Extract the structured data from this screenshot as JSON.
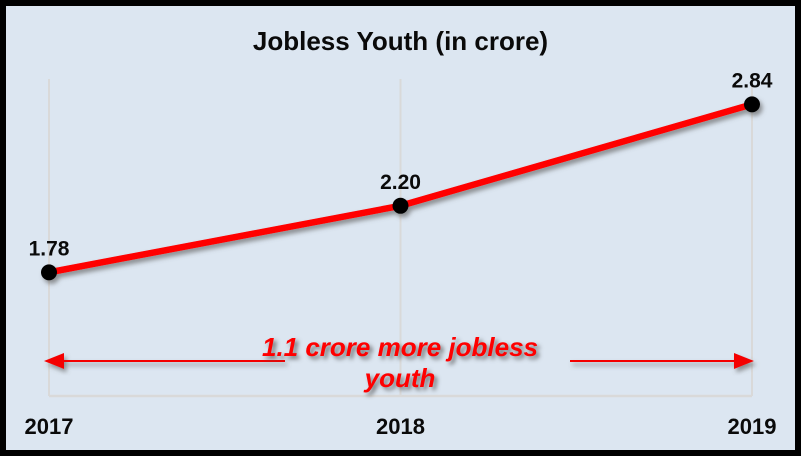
{
  "frame": {
    "background_color": "#dce6f1",
    "border_color": "#000000"
  },
  "chart_data": {
    "type": "line",
    "title": "Jobless Youth (in crore)",
    "categories": [
      "2017",
      "2018",
      "2019"
    ],
    "values": [
      1.78,
      2.2,
      2.84
    ],
    "point_labels": [
      "1.78",
      "2.20",
      "2.84"
    ],
    "ylim": [
      1.0,
      3.0
    ],
    "grid": "vertical category gridlines + bottom axis line, no y-axis labels",
    "legend": "none",
    "line_color": "#ff0000",
    "marker_color": "#000000",
    "gridline_color": "#d9d9d9",
    "label_color": "#0a0a0a",
    "annotation": {
      "lines": [
        "1.1 crore more jobless",
        "youth"
      ],
      "color": "#ff0000",
      "arrow_color": "#f40000",
      "arrows": "thin red horizontal arrows pointing outward to 2017 and 2019 gridlines"
    }
  }
}
